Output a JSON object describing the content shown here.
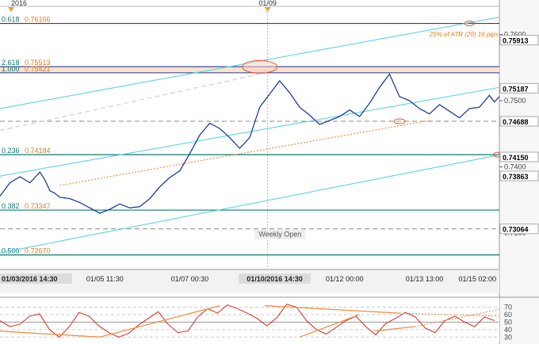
{
  "chart_data": {
    "type": "line",
    "instrument_note": "candlestick-like price series with technical levels",
    "price_axis": {
      "ylim": [
        0.7245,
        0.764
      ],
      "ticks": [
        {
          "value": 0.76,
          "label": "0.7600"
        },
        {
          "value": 0.75,
          "label": "0.7500"
        },
        {
          "value": 0.74,
          "label": "0.7400"
        },
        {
          "value": 0.73,
          "label": "0.7300"
        }
      ]
    },
    "top_markers": [
      {
        "label": "2016",
        "x": 0.0
      },
      {
        "label": "01/09",
        "x": 0.52
      }
    ],
    "time_labels": [
      {
        "label": "01/03/2016 14:30",
        "x": 0.0,
        "highlight": true
      },
      {
        "label": "01/05 11:30",
        "x": 0.21,
        "highlight": false
      },
      {
        "label": "01/07 00:30",
        "x": 0.38,
        "highlight": false
      },
      {
        "label": "01/10/2016 14:30",
        "x": 0.55,
        "highlight": true
      },
      {
        "label": "01/12 00:00",
        "x": 0.69,
        "highlight": false
      },
      {
        "label": "01/13 13:00",
        "x": 0.85,
        "highlight": false
      },
      {
        "label": "01/15 02:00",
        "x": 1.0,
        "highlight": false
      }
    ],
    "fib_levels": [
      {
        "ratio": "0.618",
        "price": "0.76166",
        "value": 0.76166,
        "color": "#8b1a3a"
      },
      {
        "ratio": "2.618",
        "price": "0.75513",
        "value": 0.75513,
        "color": "#3b4fa0"
      },
      {
        "ratio": "1.000",
        "price": "0.75421",
        "value": 0.75421,
        "color": "#3b4fa0"
      },
      {
        "ratio": "0.236",
        "price": "0.74184",
        "value": 0.74184,
        "color": "#0d7a6e"
      },
      {
        "ratio": "0.382",
        "price": "0.73347",
        "value": 0.73347,
        "color": "#0d7a6e"
      },
      {
        "ratio": "0.500",
        "price": "0.72670",
        "value": 0.7267,
        "color": "#0d7a6e"
      }
    ],
    "price_labels": [
      {
        "label": "0.75913",
        "value": 0.75913
      },
      {
        "label": "0.75187",
        "value": 0.75187
      },
      {
        "label": "0.74688",
        "value": 0.74688
      },
      {
        "label": "0.74150",
        "value": 0.7415
      },
      {
        "label": "0.73863",
        "value": 0.73863
      },
      {
        "label": "0.73064",
        "value": 0.73064
      }
    ],
    "annotations": {
      "atr_note": "25% of ATR (20) 19 pips",
      "weekly_open": "Weekly Open"
    },
    "series": [
      {
        "x": [
          0,
          0.02,
          0.04,
          0.06,
          0.08,
          0.09,
          0.1,
          0.11,
          0.12,
          0.14,
          0.16,
          0.18,
          0.2,
          0.22,
          0.24,
          0.26,
          0.28,
          0.3,
          0.32,
          0.34,
          0.36,
          0.38,
          0.4,
          0.42,
          0.44,
          0.46,
          0.48,
          0.5,
          0.52,
          0.54,
          0.56,
          0.58,
          0.6,
          0.62,
          0.64,
          0.66,
          0.68,
          0.7,
          0.72,
          0.74,
          0.76,
          0.78,
          0.8,
          0.82,
          0.84,
          0.86,
          0.88,
          0.9,
          0.92,
          0.94,
          0.96,
          0.98,
          0.99,
          1.0
        ],
        "values": [
          0.7356,
          0.7376,
          0.7385,
          0.7376,
          0.7392,
          0.738,
          0.7364,
          0.736,
          0.7354,
          0.7352,
          0.7346,
          0.7338,
          0.733,
          0.7336,
          0.7344,
          0.7338,
          0.734,
          0.7352,
          0.737,
          0.7384,
          0.7394,
          0.742,
          0.7448,
          0.7466,
          0.7458,
          0.7444,
          0.7428,
          0.7444,
          0.749,
          0.751,
          0.753,
          0.7512,
          0.749,
          0.7478,
          0.7464,
          0.747,
          0.7476,
          0.7486,
          0.7476,
          0.7496,
          0.752,
          0.754,
          0.7506,
          0.75,
          0.7488,
          0.748,
          0.7494,
          0.7484,
          0.7474,
          0.7488,
          0.749,
          0.7508,
          0.7498,
          0.7506
        ]
      }
    ],
    "trend_channels": [
      {
        "color": "#5bd3e6",
        "from": [
          0.0,
          0.7488
        ],
        "to": [
          1.0,
          0.7626
        ]
      },
      {
        "color": "#5bd3e6",
        "from": [
          0.0,
          0.7386
        ],
        "to": [
          1.0,
          0.752
        ]
      },
      {
        "color": "#5bd3e6",
        "from": [
          0.0,
          0.727
        ],
        "to": [
          1.0,
          0.7418
        ]
      },
      {
        "color": "#f08a3a",
        "from": [
          0.12,
          0.7372
        ],
        "to": [
          0.86,
          0.747
        ],
        "dotted": true
      },
      {
        "color": "#cccccc",
        "from": [
          0.0,
          0.7455
        ],
        "to": [
          0.55,
          0.7545
        ],
        "dashed": true
      }
    ],
    "dashed_levels": [
      {
        "value": 0.74688
      },
      {
        "value": 0.73064
      }
    ],
    "oscillator": {
      "ticks": [
        {
          "value": 70,
          "label": "70"
        },
        {
          "value": 60,
          "label": "60"
        },
        {
          "value": 50,
          "label": "50"
        },
        {
          "value": 40,
          "label": "40"
        },
        {
          "value": 30,
          "label": "30"
        }
      ],
      "ylim": [
        25,
        78
      ],
      "series": [
        52,
        44,
        47,
        58,
        61,
        40,
        30,
        44,
        63,
        58,
        45,
        36,
        30,
        35,
        46,
        55,
        64,
        47,
        36,
        38,
        57,
        68,
        62,
        73,
        68,
        62,
        55,
        45,
        56,
        74,
        70,
        52,
        40,
        34,
        43,
        52,
        58,
        44,
        33,
        48,
        55,
        63,
        57,
        42,
        36,
        52,
        58,
        50,
        44,
        57,
        52
      ]
    }
  }
}
